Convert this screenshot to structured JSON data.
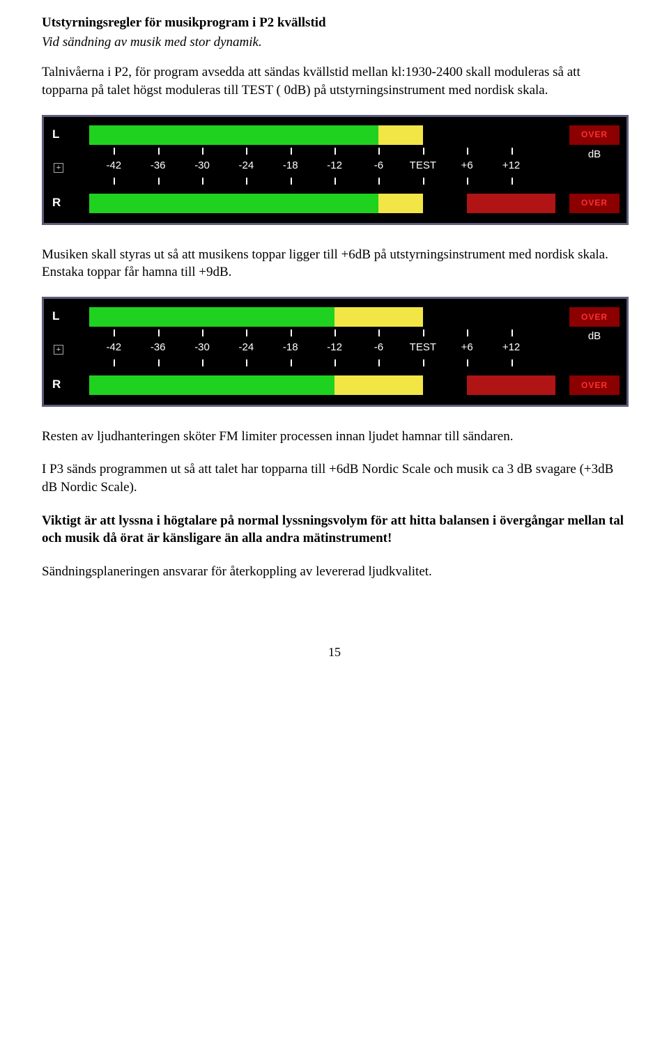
{
  "heading": "Utstyrningsregler för musikprogram i P2 kvällstid",
  "subheading": "Vid sändning av musik med stor dynamik.",
  "para1": "Talnivåerna i P2, för program avsedda att sändas kvällstid mellan kl:1930-2400 skall moduleras så att topparna på talet högst moduleras till TEST ( 0dB)  på utstyrningsinstrument med nordisk skala.",
  "para2": "Musiken skall styras ut så att musikens toppar ligger till +6dB på utstyrningsinstrument med nordisk skala. Enstaka toppar får hamna till +9dB.",
  "para3": "Resten av ljudhanteringen sköter FM limiter processen innan ljudet hamnar till sändaren.",
  "para4": "I P3 sänds programmen ut så att talet har topparna till +6dB Nordic Scale och musik ca 3 dB svagare (+3dB dB Nordic Scale).",
  "para5": "Viktigt är att lyssna i högtalare på normal lyssningsvolym för att hitta balansen i övergångar mellan tal och musik då örat är känsligare än alla andra mätinstrument!",
  "para6": "Sändningsplaneringen ansvarar för återkoppling av levererad ljudkvalitet.",
  "page_number": "15",
  "meter": {
    "channel_left_label": "L",
    "channel_right_label": "R",
    "over_label": "OVER",
    "db_unit": "dB",
    "plus_glyph": "+",
    "scale_labels": [
      "-42",
      "-36",
      "-30",
      "-24",
      "-18",
      "-12",
      "-6",
      "TEST",
      "+6",
      "+12"
    ],
    "scale_positions_pct": [
      8,
      17,
      26,
      35,
      44,
      53,
      62,
      71,
      80,
      89
    ],
    "colors": {
      "green": "#1fd21f",
      "yellow": "#f2e546",
      "red": "#b01414",
      "darkred_bg": "#8b0000",
      "over_text": "#ff3030",
      "border": "#5c5c7c",
      "bg": "#000000",
      "tick": "#ffffff"
    },
    "meter1": {
      "L": [
        {
          "from": 3,
          "to": 62,
          "color": "green"
        },
        {
          "from": 62,
          "to": 71,
          "color": "yellow"
        }
      ],
      "R": [
        {
          "from": 3,
          "to": 62,
          "color": "green"
        },
        {
          "from": 62,
          "to": 71,
          "color": "yellow"
        },
        {
          "from": 80,
          "to": 98,
          "color": "red"
        }
      ]
    },
    "meter2": {
      "L": [
        {
          "from": 3,
          "to": 53,
          "color": "green"
        },
        {
          "from": 53,
          "to": 71,
          "color": "yellow"
        }
      ],
      "R": [
        {
          "from": 3,
          "to": 53,
          "color": "green"
        },
        {
          "from": 53,
          "to": 71,
          "color": "yellow"
        },
        {
          "from": 80,
          "to": 98,
          "color": "red"
        }
      ]
    }
  }
}
